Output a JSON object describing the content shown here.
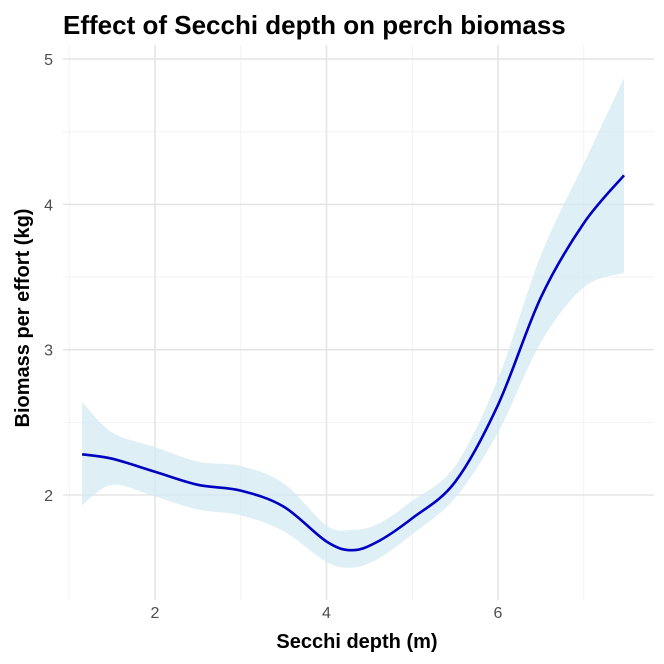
{
  "chart_data": {
    "type": "line",
    "title": "Effect of Secchi depth on perch biomass",
    "xlabel": "Secchi depth (m)",
    "ylabel": "Biomass per effort (kg)",
    "xlim": [
      1.0,
      7.75
    ],
    "ylim": [
      1.4,
      5.0
    ],
    "xticks": [
      2,
      4,
      6
    ],
    "yticks": [
      2,
      3,
      4,
      5
    ],
    "grid": true,
    "legend": "none",
    "series": [
      {
        "x": [
          1.15,
          1.5,
          2.0,
          2.5,
          3.0,
          3.5,
          4.0,
          4.3,
          4.6,
          5.0,
          5.5,
          6.0,
          6.5,
          7.0,
          7.47
        ],
        "y": [
          2.28,
          2.25,
          2.16,
          2.07,
          2.03,
          1.92,
          1.68,
          1.62,
          1.68,
          1.84,
          2.09,
          2.62,
          3.36,
          3.87,
          4.2
        ],
        "lower": [
          1.93,
          2.07,
          1.99,
          1.9,
          1.86,
          1.75,
          1.54,
          1.5,
          1.56,
          1.73,
          1.98,
          2.43,
          3.05,
          3.43,
          3.53
        ],
        "upper": [
          2.64,
          2.43,
          2.33,
          2.23,
          2.2,
          2.08,
          1.79,
          1.76,
          1.8,
          1.96,
          2.2,
          2.8,
          3.65,
          4.28,
          4.87
        ]
      }
    ],
    "colors": {
      "line": "#0000c0",
      "ribbon": "#d3e9f3",
      "grid": "#e5e5e5"
    }
  }
}
